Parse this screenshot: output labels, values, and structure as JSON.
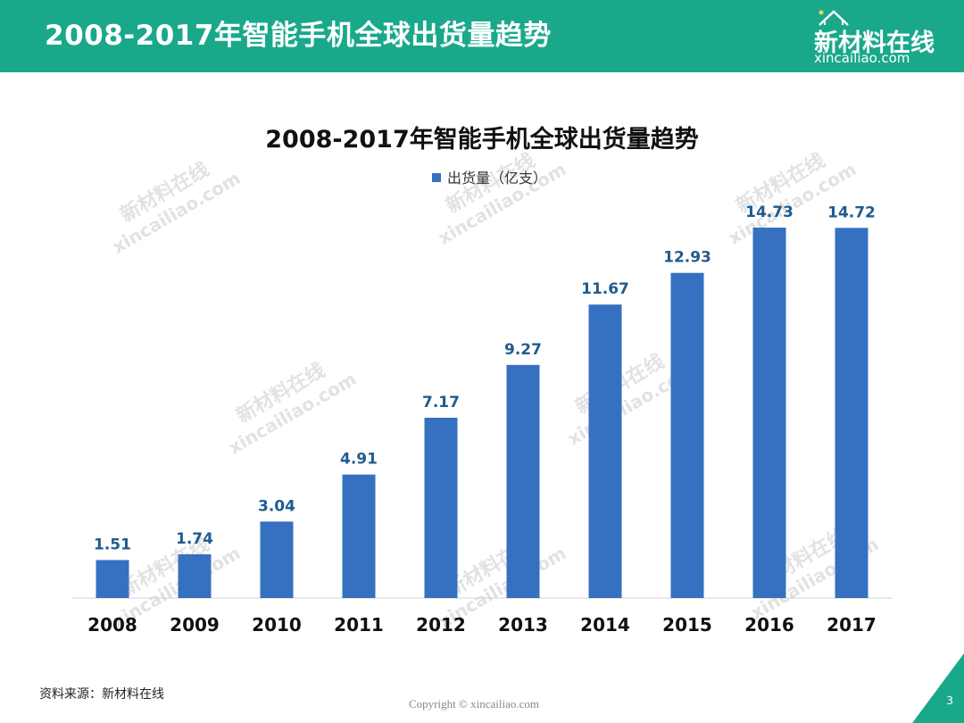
{
  "header": {
    "title": "2008-2017年智能手机全球出货量趋势",
    "logo_name": "新材料在线",
    "logo_domain": "xincailiao.com"
  },
  "colors": {
    "header_bg": "#1aa88b",
    "bar": "#3571c0",
    "data_label": "#1f5c8f",
    "watermark": "#bfbfbf"
  },
  "chart_data": {
    "type": "bar",
    "title": "2008-2017年智能手机全球出货量趋势",
    "categories": [
      "2008",
      "2009",
      "2010",
      "2011",
      "2012",
      "2013",
      "2014",
      "2015",
      "2016",
      "2017"
    ],
    "series": [
      {
        "name": "出货量（亿支）",
        "values": [
          1.51,
          1.74,
          3.04,
          4.91,
          7.17,
          9.27,
          11.67,
          12.93,
          14.73,
          14.72
        ],
        "labels": [
          "1.51",
          "1.74",
          "3.04",
          "4.91",
          "7.17",
          "9.27",
          "11.67",
          "12.93",
          "14.73",
          "14.72"
        ]
      }
    ],
    "xlabel": "",
    "ylabel": "",
    "ylim": [
      0,
      14.73
    ],
    "grid": false,
    "legend": "top-center"
  },
  "watermark": {
    "name": "新材料在线",
    "domain": "xincailiao.com"
  },
  "footer": {
    "source": "资料来源：新材料在线",
    "copyright": "Copyright © xincailiao.com",
    "page": "3"
  }
}
